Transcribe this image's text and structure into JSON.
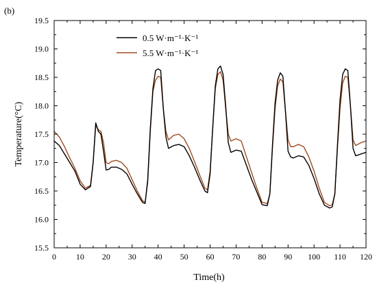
{
  "panel_label": "(b)",
  "chart_data": {
    "type": "line",
    "xlabel": "Time(h)",
    "ylabel": "Temperature(°C)",
    "xlim": [
      0,
      120
    ],
    "ylim": [
      15.5,
      19.5
    ],
    "x_ticks": [
      0,
      10,
      20,
      30,
      40,
      50,
      60,
      70,
      80,
      90,
      100,
      110,
      120
    ],
    "y_ticks": [
      15.5,
      16.0,
      16.5,
      17.0,
      17.5,
      18.0,
      18.5,
      19.0,
      19.5
    ],
    "x_tick_labels": [
      "0",
      "10",
      "20",
      "30",
      "40",
      "50",
      "60",
      "70",
      "80",
      "90",
      "100",
      "110",
      "120"
    ],
    "y_tick_labels": [
      "15.5",
      "16.0",
      "16.5",
      "17.0",
      "17.5",
      "18.0",
      "18.5",
      "19.0",
      "19.5"
    ],
    "grid": false,
    "legend_position": "top-left",
    "series": [
      {
        "name": "0.5 W·m⁻¹·K⁻¹",
        "color": "#000000",
        "x": [
          0,
          2,
          4,
          6,
          8,
          10,
          12,
          14,
          15,
          16,
          17,
          18,
          19,
          20,
          21,
          22,
          24,
          26,
          28,
          30,
          32,
          34,
          35,
          36,
          37,
          38,
          39,
          40,
          41,
          42,
          43,
          44,
          46,
          48,
          50,
          52,
          54,
          56,
          58,
          59,
          60,
          61,
          62,
          63,
          64,
          65,
          66,
          67,
          68,
          70,
          72,
          74,
          76,
          78,
          80,
          82,
          83,
          84,
          85,
          86,
          87,
          88,
          89,
          90,
          91,
          92,
          94,
          96,
          98,
          100,
          102,
          104,
          106,
          107,
          108,
          109,
          110,
          111,
          112,
          113,
          114,
          115,
          116,
          118,
          120
        ],
        "y": [
          17.38,
          17.3,
          17.15,
          17.0,
          16.85,
          16.62,
          16.52,
          16.58,
          17.0,
          17.7,
          17.55,
          17.5,
          17.2,
          16.87,
          16.88,
          16.92,
          16.92,
          16.88,
          16.8,
          16.62,
          16.45,
          16.3,
          16.28,
          16.7,
          17.6,
          18.3,
          18.62,
          18.65,
          18.62,
          17.95,
          17.45,
          17.25,
          17.3,
          17.32,
          17.28,
          17.12,
          16.92,
          16.7,
          16.5,
          16.47,
          16.8,
          17.6,
          18.35,
          18.65,
          18.7,
          18.55,
          18.0,
          17.35,
          17.18,
          17.22,
          17.2,
          16.95,
          16.7,
          16.48,
          16.26,
          16.24,
          16.45,
          17.3,
          18.05,
          18.45,
          18.58,
          18.52,
          17.9,
          17.2,
          17.1,
          17.08,
          17.12,
          17.1,
          16.95,
          16.72,
          16.45,
          16.25,
          16.2,
          16.22,
          16.45,
          17.3,
          18.1,
          18.55,
          18.65,
          18.62,
          18.0,
          17.25,
          17.12,
          17.15,
          17.18
        ]
      },
      {
        "name": "5.5 W·m⁻¹·K⁻¹",
        "color": "#a04a1c",
        "x": [
          0,
          2,
          4,
          6,
          8,
          10,
          12,
          14,
          15,
          16,
          17,
          18,
          19,
          20,
          21,
          22,
          24,
          26,
          28,
          30,
          32,
          34,
          35,
          36,
          37,
          38,
          39,
          40,
          41,
          42,
          43,
          44,
          46,
          48,
          50,
          52,
          54,
          56,
          58,
          59,
          60,
          61,
          62,
          63,
          64,
          65,
          66,
          67,
          68,
          70,
          72,
          74,
          76,
          78,
          80,
          82,
          83,
          84,
          85,
          86,
          87,
          88,
          89,
          90,
          91,
          92,
          94,
          96,
          98,
          100,
          102,
          104,
          106,
          107,
          108,
          109,
          110,
          111,
          112,
          113,
          114,
          115,
          116,
          118,
          120
        ],
        "y": [
          17.55,
          17.45,
          17.28,
          17.08,
          16.9,
          16.68,
          16.55,
          16.6,
          17.0,
          17.65,
          17.58,
          17.55,
          17.35,
          17.0,
          16.98,
          17.02,
          17.04,
          17.0,
          16.9,
          16.7,
          16.5,
          16.33,
          16.3,
          16.65,
          17.55,
          18.25,
          18.45,
          18.52,
          18.5,
          17.95,
          17.55,
          17.4,
          17.48,
          17.5,
          17.42,
          17.25,
          17.02,
          16.78,
          16.55,
          16.52,
          16.85,
          17.6,
          18.3,
          18.55,
          18.6,
          18.45,
          17.95,
          17.5,
          17.38,
          17.42,
          17.38,
          17.1,
          16.82,
          16.55,
          16.3,
          16.28,
          16.45,
          17.25,
          17.95,
          18.35,
          18.47,
          18.42,
          17.9,
          17.4,
          17.28,
          17.28,
          17.32,
          17.28,
          17.1,
          16.85,
          16.55,
          16.3,
          16.24,
          16.26,
          16.45,
          17.25,
          17.95,
          18.4,
          18.52,
          18.5,
          18.0,
          17.4,
          17.3,
          17.35,
          17.38
        ]
      }
    ]
  }
}
